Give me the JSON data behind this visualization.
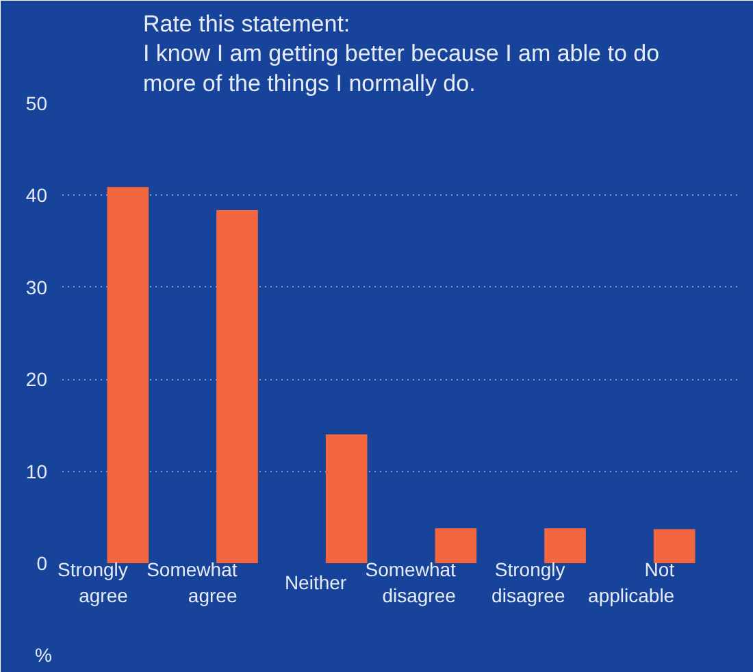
{
  "chart_data": {
    "type": "bar",
    "title": "Rate this statement:\nI know I am getting better because I am able to do\nmore of the things I normally do.",
    "ylabel": "%",
    "categories": [
      "Strongly\nagree",
      "Somewhat\nagree",
      "Neither",
      "Somewhat\ndisagree",
      "Strongly\ndisagree",
      "Not\napplicable"
    ],
    "values": [
      40.9,
      38.4,
      14.0,
      3.8,
      3.8,
      3.7
    ],
    "color": "#f26640",
    "ylim": [
      0,
      50
    ],
    "yticks": [
      0,
      10,
      20,
      30,
      40,
      50
    ],
    "grid": "y"
  }
}
